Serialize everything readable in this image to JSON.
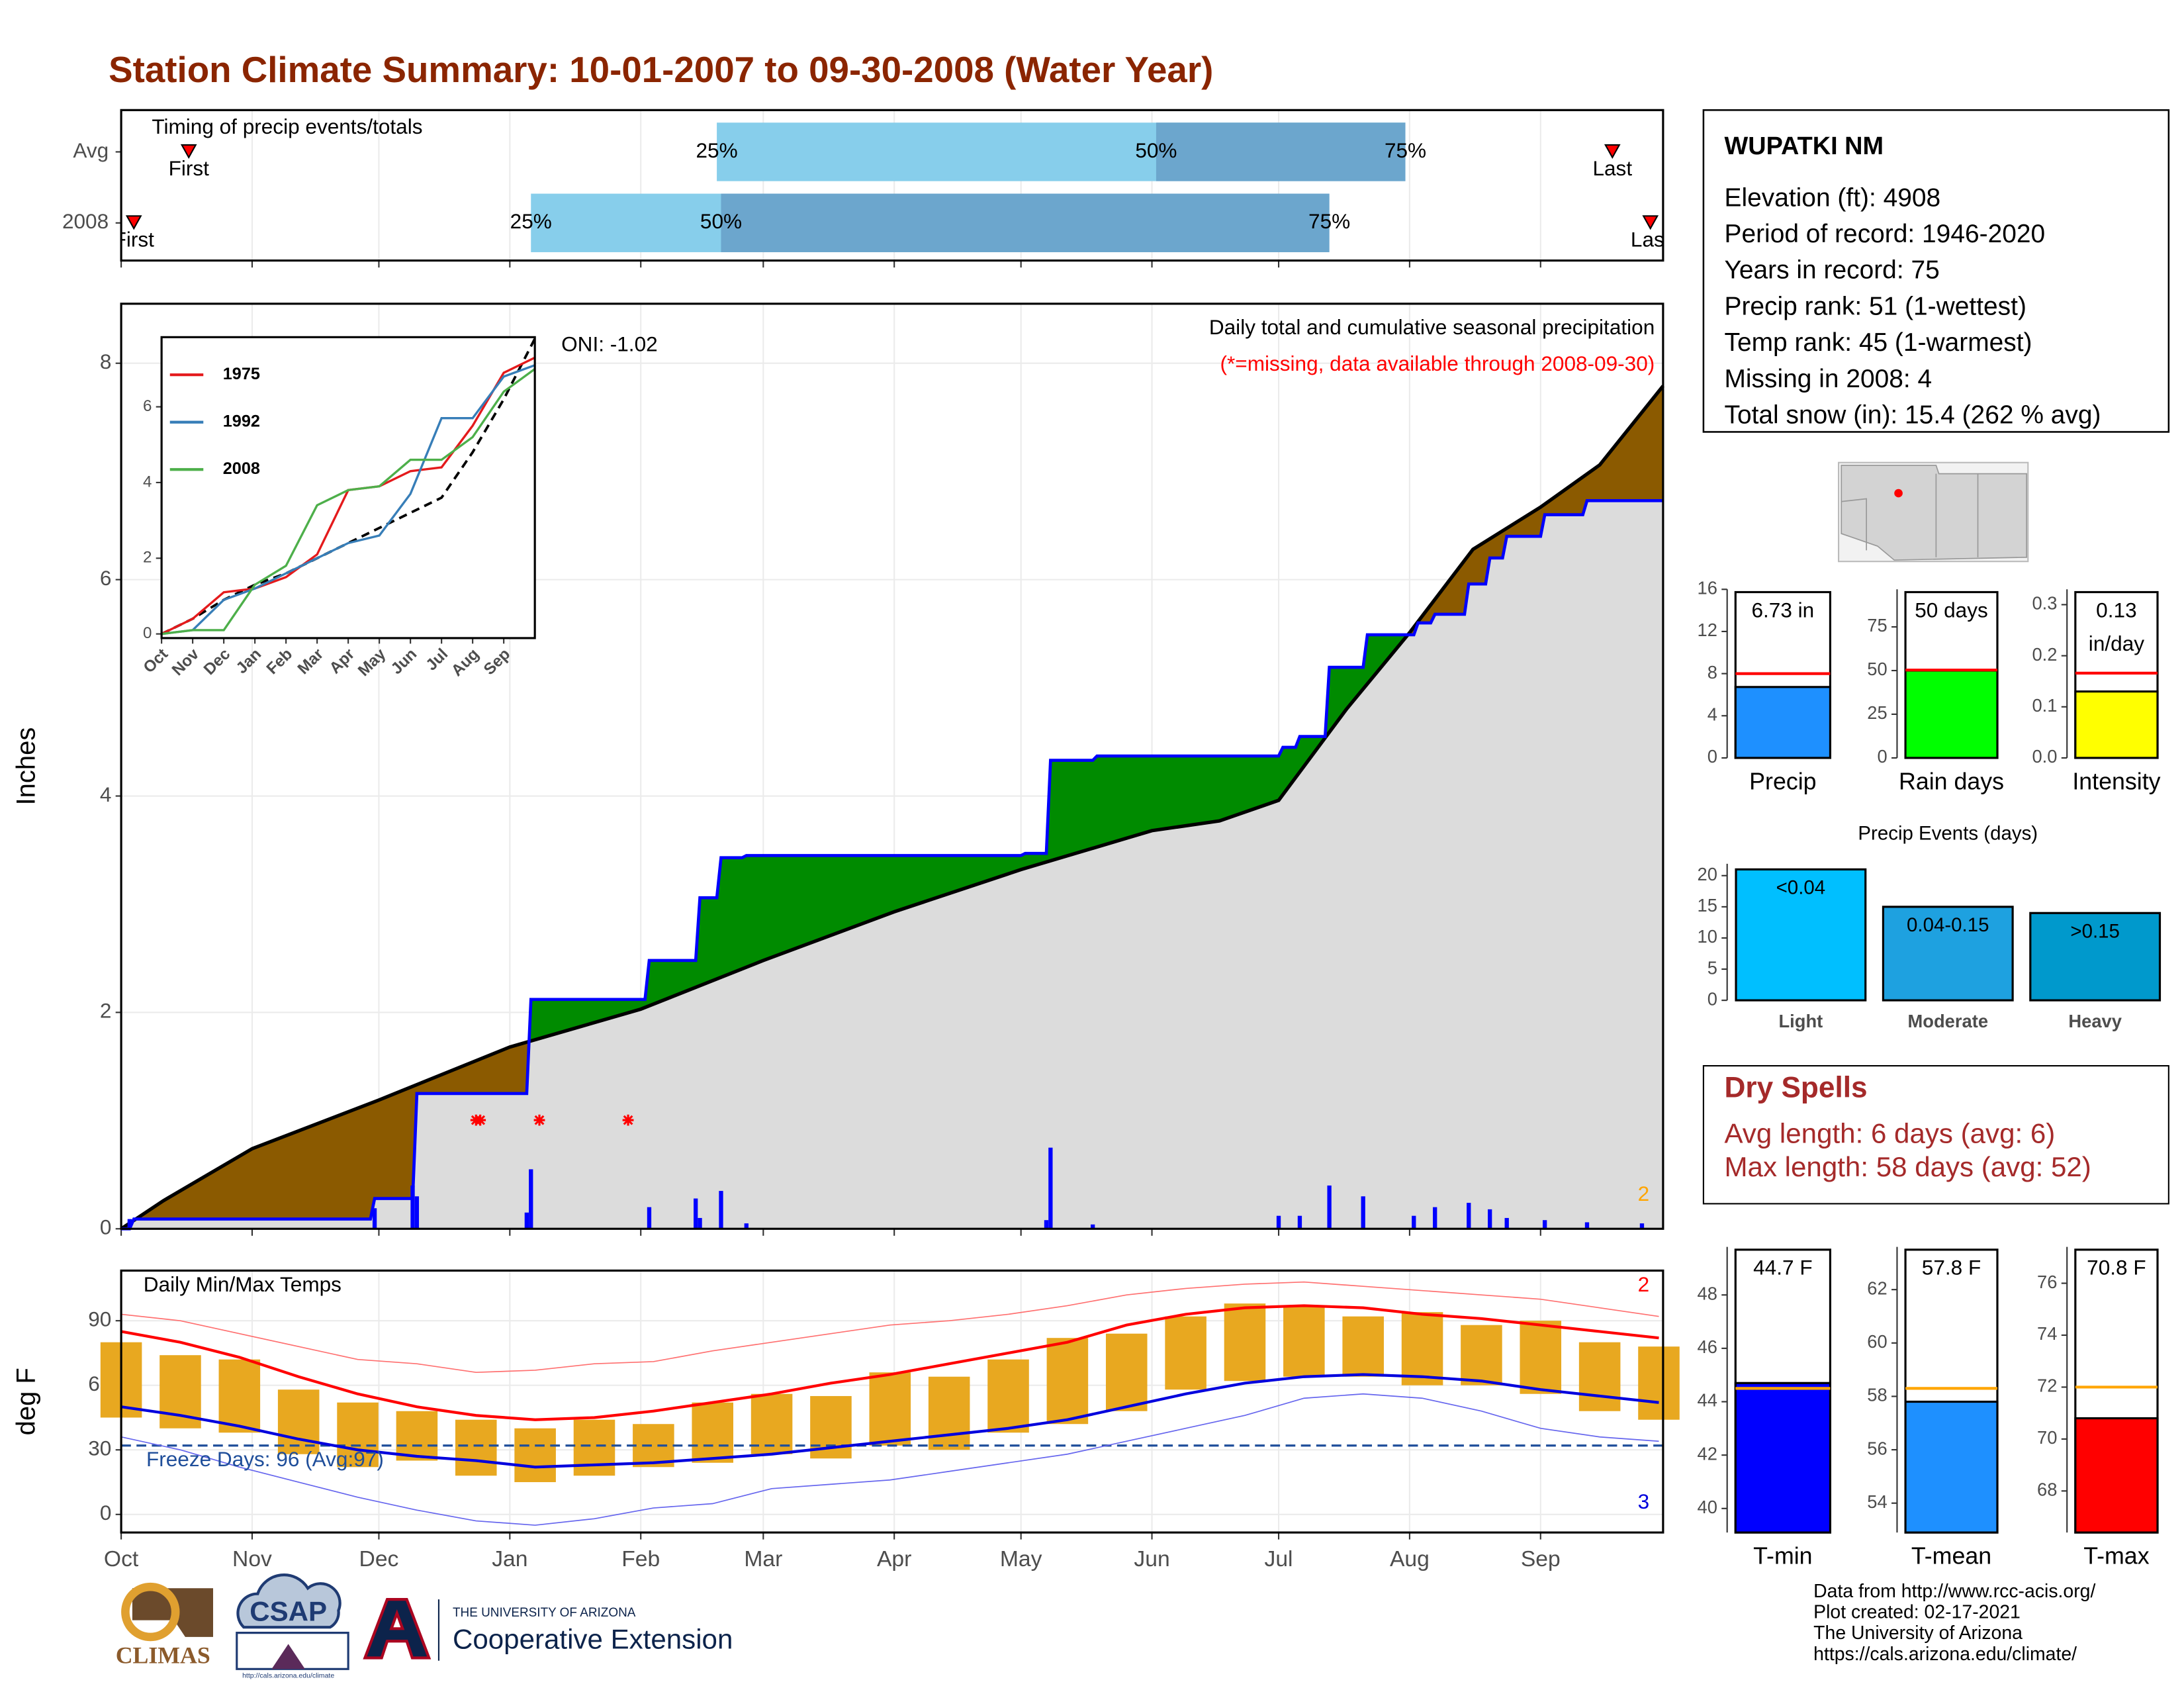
{
  "title": "Station Climate Summary: 10-01-2007 to 09-30-2008 (Water Year)",
  "station": {
    "name": "WUPATKI NM",
    "lines": [
      "Elevation (ft): 4908",
      "Period of record: 1946-2020",
      "Years in record: 75",
      "Precip rank: 51 (1-wettest)",
      "Temp rank: 45 (1-warmest)",
      "Missing in 2008: 4",
      "Total snow (in): 15.4 (262 % avg)"
    ]
  },
  "dry_spells": {
    "title": "Dry Spells",
    "lines": [
      "Avg length: 6 days (avg: 6)",
      "Max length: 58 days (avg: 52)"
    ]
  },
  "footer": [
    "Data from http://www.rcc-acis.org/",
    "Plot created: 02-17-2021",
    "The University of Arizona",
    "https://cals.arizona.edu/climate/"
  ],
  "logos": {
    "climas": "CLIMAS",
    "csap": "CSAP",
    "csap_url": "http://cals.arizona.edu/climate",
    "university": "THE UNIVERSITY OF ARIZONA",
    "extension": "Cooperative Extension"
  },
  "chart_data": [
    {
      "type": "timing",
      "title": "Timing of precip events/totals",
      "xlim": [
        0,
        365
      ],
      "xticks": [
        0,
        31,
        61,
        92,
        123,
        152,
        183,
        213,
        244,
        274,
        305,
        336
      ],
      "rows": [
        {
          "name": "Avg",
          "first": 16,
          "p25": 141,
          "p50": 245,
          "p75": 304,
          "last": 353
        },
        {
          "name": "2008",
          "first": 3,
          "p25": 97,
          "p50": 142,
          "p75": 286,
          "last": 362
        }
      ],
      "first_label": "First",
      "last_label": "Last",
      "percent_labels": [
        "25%",
        "50%",
        "75%"
      ],
      "colors": {
        "light": "#87ceeb",
        "dark": "#6ca6cd",
        "marker": "#ff0000"
      }
    },
    {
      "type": "cumulative-precip",
      "title": "Daily total and cumulative seasonal precipitation",
      "subtitle": "(*=missing, data available through 2008-09-30)",
      "ylabel": "Inches",
      "annotation": "ONI: -1.02",
      "count_label": "2",
      "xlim": [
        0,
        365
      ],
      "xticks": [
        0,
        31,
        61,
        92,
        123,
        152,
        183,
        213,
        244,
        274,
        305,
        336
      ],
      "ylim": [
        0,
        8.55
      ],
      "yticks": [
        0,
        2,
        4,
        6,
        8
      ],
      "grid": true,
      "average": {
        "x": [
          0,
          10,
          31,
          61,
          92,
          123,
          152,
          183,
          213,
          244,
          260,
          274,
          290,
          305,
          320,
          336,
          350,
          365
        ],
        "values": [
          0,
          0.26,
          0.74,
          1.19,
          1.68,
          2.03,
          2.48,
          2.93,
          3.32,
          3.68,
          3.77,
          3.96,
          4.8,
          5.51,
          6.28,
          6.67,
          7.06,
          7.79
        ],
        "color": "#000000",
        "fill": "#dcdcdc"
      },
      "current": {
        "x": [
          0,
          2,
          3,
          59,
          60,
          69,
          70,
          96,
          97,
          124,
          125,
          136,
          137,
          141,
          142,
          147,
          148,
          213,
          214,
          219,
          220,
          230,
          231,
          274,
          275,
          278,
          279,
          285,
          286,
          294,
          295,
          306,
          307,
          310,
          311,
          318,
          319,
          323,
          324,
          327,
          328,
          336,
          337,
          346,
          347,
          365
        ],
        "values": [
          0,
          0,
          0.09,
          0.09,
          0.28,
          0.28,
          1.25,
          1.25,
          2.12,
          2.12,
          2.48,
          2.48,
          3.06,
          3.06,
          3.43,
          3.43,
          3.45,
          3.45,
          3.47,
          3.47,
          4.33,
          4.33,
          4.37,
          4.37,
          4.45,
          4.45,
          4.55,
          4.55,
          5.19,
          5.19,
          5.49,
          5.49,
          5.6,
          5.6,
          5.68,
          5.68,
          5.96,
          5.96,
          6.2,
          6.2,
          6.4,
          6.4,
          6.6,
          6.6,
          6.73,
          6.73
        ],
        "color": "#0000ff"
      },
      "fill_colors": {
        "below": "#8b5a00",
        "above": "#008b00"
      },
      "daily": {
        "x": [
          2,
          60,
          69,
          70,
          96,
          97,
          125,
          136,
          137,
          142,
          148,
          219,
          220,
          230,
          274,
          279,
          286,
          294,
          306,
          311,
          319,
          324,
          328,
          337,
          347,
          360
        ],
        "values": [
          0.09,
          0.19,
          0.4,
          0.3,
          0.15,
          0.55,
          0.2,
          0.28,
          0.1,
          0.35,
          0.05,
          0.08,
          0.75,
          0.04,
          0.12,
          0.12,
          0.4,
          0.3,
          0.12,
          0.2,
          0.24,
          0.18,
          0.1,
          0.08,
          0.06,
          0.05
        ],
        "color": "#0000ff"
      },
      "missing_days": [
        84,
        85,
        99,
        120
      ],
      "missing_color": "#ff0000",
      "count_color": "#ffa500"
    },
    {
      "type": "line",
      "xlim": [
        0,
        12
      ],
      "ylim": [
        -0.11,
        7.84
      ],
      "xticks": [
        {
          "value": 0,
          "label": "Oct"
        },
        {
          "value": 1,
          "label": "Nov"
        },
        {
          "value": 2,
          "label": "Dec"
        },
        {
          "value": 3,
          "label": "Jan"
        },
        {
          "value": 4,
          "label": "Feb"
        },
        {
          "value": 5,
          "label": "Mar"
        },
        {
          "value": 6,
          "label": "Apr"
        },
        {
          "value": 7,
          "label": "May"
        },
        {
          "value": 8,
          "label": "Jun"
        },
        {
          "value": 9,
          "label": "Jul"
        },
        {
          "value": 10,
          "label": "Aug"
        },
        {
          "value": 11,
          "label": "Sep"
        }
      ],
      "yticks": [
        0,
        2,
        4,
        6
      ],
      "x": [
        0,
        1,
        2,
        3,
        4,
        5,
        6,
        7,
        8,
        9,
        10,
        11,
        12
      ],
      "reference": {
        "values": [
          0,
          0.4,
          0.9,
          1.3,
          1.6,
          2.0,
          2.4,
          2.8,
          3.2,
          3.6,
          4.8,
          6.2,
          7.8
        ],
        "color": "#000000",
        "dashed": true
      },
      "series": [
        {
          "name": "1975",
          "color": "#e41a1c",
          "values": [
            0,
            0.4,
            1.1,
            1.2,
            1.5,
            2.1,
            3.8,
            3.9,
            4.3,
            4.4,
            5.5,
            6.9,
            7.3
          ]
        },
        {
          "name": "1992",
          "color": "#377eb8",
          "values": [
            0,
            0.1,
            0.9,
            1.2,
            1.6,
            2.0,
            2.4,
            2.6,
            3.7,
            5.7,
            5.7,
            6.8,
            7.1
          ]
        },
        {
          "name": "2008",
          "color": "#4daf4a",
          "values": [
            0,
            0.1,
            0.1,
            1.3,
            1.8,
            3.4,
            3.8,
            3.9,
            4.6,
            4.6,
            5.2,
            6.4,
            7.0
          ]
        }
      ],
      "legend": "top-left"
    },
    {
      "type": "temperature",
      "title": "Daily Min/Max Temps",
      "ylabel": "deg F",
      "annotation": "Freeze Days: 96 (Avg:97)",
      "max_count_label": "2",
      "min_count_label": "3",
      "xlim": [
        0,
        365
      ],
      "ylim": [
        -8.4,
        113.3
      ],
      "yticks": [
        0,
        30,
        60,
        90
      ],
      "grid": true,
      "xticks": [
        {
          "value": 0,
          "label": "Oct"
        },
        {
          "value": 31,
          "label": "Nov"
        },
        {
          "value": 61,
          "label": "Dec"
        },
        {
          "value": 92,
          "label": "Jan"
        },
        {
          "value": 123,
          "label": "Feb"
        },
        {
          "value": 152,
          "label": "Mar"
        },
        {
          "value": 183,
          "label": "Apr"
        },
        {
          "value": 213,
          "label": "May"
        },
        {
          "value": 244,
          "label": "Jun"
        },
        {
          "value": 274,
          "label": "Jul"
        },
        {
          "value": 305,
          "label": "Aug"
        },
        {
          "value": 336,
          "label": "Sep"
        }
      ],
      "freeze_threshold": 32,
      "x": [
        0,
        14,
        28,
        42,
        56,
        70,
        84,
        98,
        112,
        126,
        140,
        154,
        168,
        182,
        196,
        210,
        224,
        238,
        252,
        266,
        280,
        294,
        308,
        322,
        336,
        350,
        364
      ],
      "daily_max": [
        80,
        74,
        72,
        58,
        52,
        48,
        44,
        40,
        44,
        42,
        52,
        56,
        55,
        66,
        64,
        72,
        82,
        84,
        92,
        98,
        97,
        92,
        94,
        88,
        90,
        80,
        78
      ],
      "daily_min": [
        45,
        40,
        38,
        28,
        22,
        25,
        18,
        15,
        18,
        22,
        24,
        28,
        26,
        32,
        30,
        38,
        42,
        48,
        58,
        62,
        64,
        64,
        60,
        60,
        56,
        48,
        44
      ],
      "avg_max": [
        85,
        80,
        73,
        64,
        56,
        50,
        46,
        44,
        45,
        48,
        52,
        56,
        61,
        65,
        70,
        75,
        80,
        88,
        93,
        96,
        97,
        96,
        93,
        91,
        88,
        85,
        82
      ],
      "avg_min": [
        50,
        46,
        41,
        35,
        30,
        27,
        25,
        22,
        23,
        24,
        26,
        28,
        31,
        34,
        37,
        40,
        44,
        50,
        56,
        61,
        64,
        65,
        64,
        62,
        58,
        55,
        52
      ],
      "record_max": [
        93,
        90,
        84,
        78,
        72,
        70,
        66,
        67,
        70,
        71,
        76,
        80,
        84,
        88,
        90,
        93,
        97,
        102,
        105,
        107,
        108,
        106,
        104,
        102,
        100,
        96,
        92
      ],
      "record_min": [
        36,
        30,
        22,
        15,
        8,
        2,
        -3,
        -5,
        -2,
        3,
        5,
        12,
        14,
        16,
        20,
        24,
        28,
        34,
        40,
        46,
        54,
        56,
        54,
        48,
        40,
        36,
        34
      ],
      "colors": {
        "range": "#e8a820",
        "avg_max": "#ff0000",
        "avg_min": "#0000dd",
        "record_max": "#ff7070",
        "record_min": "#6666ee",
        "freeze": "#1f4e9a"
      }
    },
    {
      "type": "summary-bar",
      "categories": [
        "Precip"
      ],
      "values": [
        6.73
      ],
      "value_labels": [
        "6.73 in"
      ],
      "average": 8.0,
      "color": "#1e90ff",
      "average_color": "#ff0000",
      "ylim": [
        0,
        16
      ],
      "yticks": [
        0,
        4,
        8,
        12,
        16
      ]
    },
    {
      "type": "summary-bar",
      "categories": [
        "Rain days"
      ],
      "values": [
        50
      ],
      "value_labels": [
        "50 days"
      ],
      "average": 50.3,
      "color": "#00ff00",
      "average_color": "#ff0000",
      "ylim": [
        0,
        96.5
      ],
      "yticks": [
        0,
        25,
        50,
        75
      ]
    },
    {
      "type": "summary-bar",
      "categories": [
        "Intensity"
      ],
      "values": [
        0.13
      ],
      "value_labels": [
        "0.13 in/day"
      ],
      "average": 0.166,
      "color": "#ffff00",
      "average_color": "#ff0000",
      "ylim": [
        0,
        0.33
      ],
      "yticks": [
        {
          "value": 0,
          "label": "0.0"
        },
        0.1,
        0.2,
        0.3
      ]
    },
    {
      "type": "bar",
      "title": "Precip Events (days)",
      "categories": [
        "Light",
        "Moderate",
        "Heavy"
      ],
      "values": [
        21,
        15,
        14
      ],
      "bin_labels": [
        "<0.04",
        "0.04-0.15",
        ">0.15"
      ],
      "colors": [
        "#00bfff",
        "#1ea1e0",
        "#0099cc"
      ],
      "ylim": [
        0,
        21.9
      ],
      "yticks": [
        0,
        5,
        10,
        15,
        20
      ]
    },
    {
      "type": "summary-bar",
      "categories": [
        "T-min"
      ],
      "values": [
        44.7
      ],
      "value_labels": [
        "44.7 F"
      ],
      "average": 44.5,
      "color": "#0000ff",
      "average_color": "#ffa500",
      "ylim": [
        39.1,
        49.8
      ],
      "yticks": [
        40,
        42,
        44,
        46,
        48
      ]
    },
    {
      "type": "summary-bar",
      "categories": [
        "T-mean"
      ],
      "values": [
        57.8
      ],
      "value_labels": [
        "57.8 F"
      ],
      "average": 58.3,
      "color": "#1e90ff",
      "average_color": "#ffa500",
      "ylim": [
        52.9,
        63.6
      ],
      "yticks": [
        54,
        56,
        58,
        60,
        62
      ]
    },
    {
      "type": "summary-bar",
      "categories": [
        "T-max"
      ],
      "values": [
        70.8
      ],
      "value_labels": [
        "70.8 F"
      ],
      "average": 72.0,
      "color": "#ff0000",
      "average_color": "#ffa500",
      "ylim": [
        66.4,
        77.4
      ],
      "yticks": [
        68,
        70,
        72,
        74,
        76
      ]
    }
  ]
}
